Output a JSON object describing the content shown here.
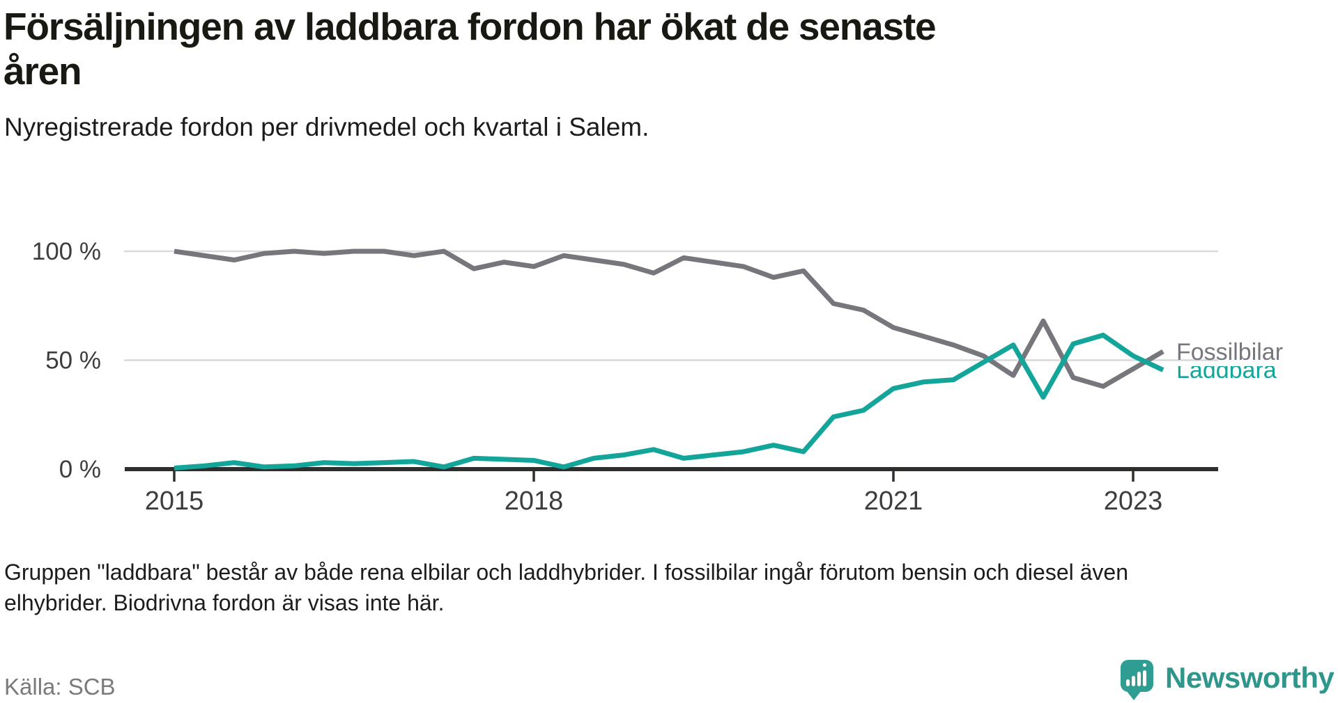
{
  "header": {
    "title_lines": [
      "Försäljningen av laddbara fordon har ökat de senaste",
      "åren"
    ],
    "subtitle": "Nyregistrerade fordon per drivmedel och kvartal i Salem."
  },
  "chart_data": {
    "type": "line",
    "title": "Försäljningen av laddbara fordon har ökat de senaste åren",
    "subtitle": "Nyregistrerade fordon per drivmedel och kvartal i Salem.",
    "unit": "%",
    "ylim": [
      0,
      100
    ],
    "grid": "horizontal",
    "legend": "end-of-line-labels",
    "x_quarters": [
      "2015 Q1",
      "2015 Q2",
      "2015 Q3",
      "2015 Q4",
      "2016 Q1",
      "2016 Q2",
      "2016 Q3",
      "2016 Q4",
      "2017 Q1",
      "2017 Q2",
      "2017 Q3",
      "2017 Q4",
      "2018 Q1",
      "2018 Q2",
      "2018 Q3",
      "2018 Q4",
      "2019 Q1",
      "2019 Q2",
      "2019 Q3",
      "2019 Q4",
      "2020 Q1",
      "2020 Q2",
      "2020 Q3",
      "2020 Q4",
      "2021 Q1",
      "2021 Q2",
      "2021 Q3",
      "2021 Q4",
      "2022 Q1",
      "2022 Q2",
      "2022 Q3",
      "2022 Q4",
      "2023 Q1",
      "2023 Q2"
    ],
    "series": [
      {
        "name": "Fossilbilar",
        "color": "#76767c",
        "values": [
          100,
          98,
          96,
          99,
          100,
          99,
          100,
          100,
          98,
          100,
          92,
          95,
          93,
          98,
          96,
          94,
          90,
          97,
          95,
          93,
          88,
          91,
          76,
          73,
          65,
          61,
          57,
          52,
          43,
          68,
          42,
          38,
          46,
          54
        ]
      },
      {
        "name": "Laddbara",
        "color": "#14a59a",
        "values": [
          0.5,
          1.5,
          3,
          1,
          1.5,
          3,
          2.5,
          3,
          3.5,
          1,
          5,
          4.5,
          4,
          1,
          5,
          6.5,
          9,
          5,
          6.5,
          8,
          11,
          8,
          24,
          27,
          37,
          40,
          41,
          49,
          57,
          33,
          57.5,
          61.5,
          52,
          45.5
        ]
      }
    ],
    "y_ticks": [
      {
        "label": "100 %",
        "value": 100
      },
      {
        "label": "50 %",
        "value": 50
      },
      {
        "label": "0 %",
        "value": 0
      }
    ],
    "x_ticks": [
      {
        "label": "2015",
        "index": 0
      },
      {
        "label": "2018",
        "index": 12
      },
      {
        "label": "2021",
        "index": 24
      },
      {
        "label": "2023",
        "index": 32
      }
    ],
    "colors": {
      "grid": "#d9d9d9",
      "axis": "#2e2e2c",
      "tick_text": "#3d3d3d"
    }
  },
  "footer": {
    "footnote_lines": [
      "Gruppen \"laddbara\" består av både rena elbilar och laddhybrider. I fossilbilar ingår förutom bensin och diesel även",
      "elhybrider. Biodrivna fordon är visas inte här."
    ],
    "source": "Källa: SCB",
    "logo_text": "Newsworthy",
    "logo_color": "#2f9d92",
    "logo_text_color": "#2e968b"
  }
}
